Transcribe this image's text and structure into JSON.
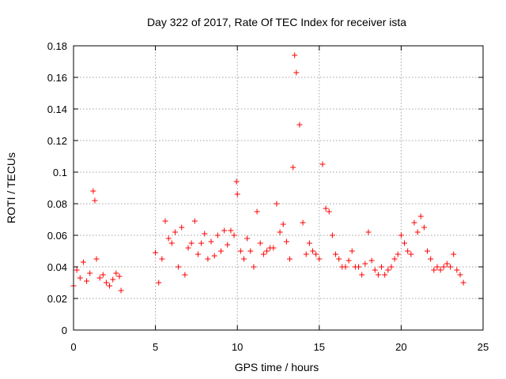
{
  "chart_data": {
    "type": "scatter",
    "title": "Day 322 of 2017, Rate Of TEC Index for receiver ista",
    "xlabel": "GPS time / hours",
    "ylabel": "ROTI / TECUs",
    "xlim": [
      0,
      25
    ],
    "ylim": [
      0,
      0.18
    ],
    "xticks": [
      "0",
      "5",
      "10",
      "15",
      "20",
      "25"
    ],
    "yticks": [
      "0",
      "0.02",
      "0.04",
      "0.06",
      "0.08",
      "0.1",
      "0.12",
      "0.14",
      "0.16",
      "0.18"
    ],
    "grid": true,
    "marker": "+",
    "color": "#ff0000",
    "series": [
      {
        "x": [
          0.0,
          0.2,
          0.4,
          0.6,
          0.8,
          1.0,
          1.2,
          1.3,
          1.4,
          1.6,
          1.8,
          2.0,
          2.2,
          2.4,
          2.6,
          2.8,
          2.9,
          5.0,
          5.2,
          5.4,
          5.6,
          5.8,
          6.0,
          6.2,
          6.4,
          6.6,
          6.8,
          7.0,
          7.2,
          7.4,
          7.6,
          7.8,
          8.0,
          8.2,
          8.4,
          8.6,
          8.8,
          9.0,
          9.2,
          9.4,
          9.6,
          9.8,
          9.95,
          10.0,
          10.2,
          10.4,
          10.6,
          10.8,
          11.0,
          11.2,
          11.4,
          11.6,
          11.8,
          12.0,
          12.2,
          12.4,
          12.6,
          12.8,
          13.0,
          13.2,
          13.4,
          13.5,
          13.6,
          13.8,
          14.0,
          14.2,
          14.4,
          14.6,
          14.8,
          15.0,
          15.2,
          15.4,
          15.6,
          15.8,
          16.0,
          16.2,
          16.4,
          16.6,
          16.8,
          17.0,
          17.2,
          17.4,
          17.6,
          17.8,
          18.0,
          18.2,
          18.4,
          18.6,
          18.8,
          19.0,
          19.2,
          19.4,
          19.6,
          19.8,
          20.0,
          20.2,
          20.4,
          20.6,
          20.8,
          21.0,
          21.2,
          21.4,
          21.6,
          21.8,
          22.0,
          22.2,
          22.4,
          22.6,
          22.8,
          23.0,
          23.2,
          23.4,
          23.6,
          23.8
        ],
        "y": [
          0.028,
          0.038,
          0.033,
          0.043,
          0.031,
          0.036,
          0.088,
          0.082,
          0.045,
          0.033,
          0.035,
          0.03,
          0.028,
          0.032,
          0.036,
          0.034,
          0.025,
          0.049,
          0.03,
          0.045,
          0.069,
          0.058,
          0.055,
          0.062,
          0.04,
          0.065,
          0.035,
          0.052,
          0.055,
          0.069,
          0.048,
          0.055,
          0.061,
          0.045,
          0.056,
          0.047,
          0.06,
          0.05,
          0.063,
          0.054,
          0.063,
          0.06,
          0.094,
          0.086,
          0.05,
          0.045,
          0.058,
          0.05,
          0.04,
          0.075,
          0.055,
          0.048,
          0.05,
          0.052,
          0.052,
          0.08,
          0.062,
          0.067,
          0.056,
          0.045,
          0.103,
          0.174,
          0.163,
          0.13,
          0.068,
          0.048,
          0.055,
          0.05,
          0.048,
          0.045,
          0.105,
          0.077,
          0.075,
          0.06,
          0.048,
          0.045,
          0.04,
          0.04,
          0.044,
          0.05,
          0.04,
          0.04,
          0.035,
          0.042,
          0.062,
          0.044,
          0.038,
          0.035,
          0.04,
          0.035,
          0.038,
          0.04,
          0.045,
          0.048,
          0.06,
          0.055,
          0.05,
          0.048,
          0.068,
          0.062,
          0.072,
          0.065,
          0.05,
          0.045,
          0.038,
          0.04,
          0.038,
          0.04,
          0.042,
          0.04,
          0.048,
          0.038,
          0.035,
          0.03
        ]
      }
    ]
  }
}
